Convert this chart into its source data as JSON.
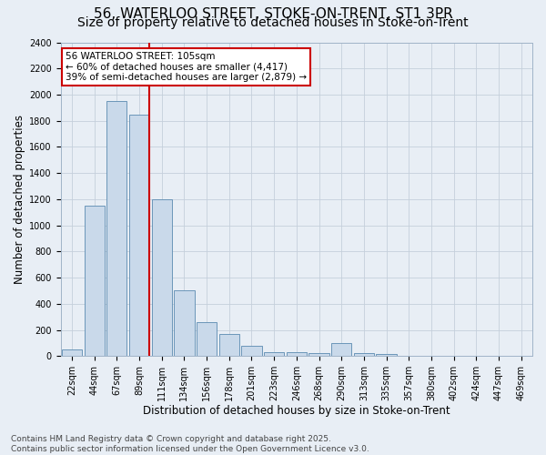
{
  "title_line1": "56, WATERLOO STREET, STOKE-ON-TRENT, ST1 3PR",
  "title_line2": "Size of property relative to detached houses in Stoke-on-Trent",
  "xlabel": "Distribution of detached houses by size in Stoke-on-Trent",
  "ylabel": "Number of detached properties",
  "categories": [
    "22sqm",
    "44sqm",
    "67sqm",
    "89sqm",
    "111sqm",
    "134sqm",
    "156sqm",
    "178sqm",
    "201sqm",
    "223sqm",
    "246sqm",
    "268sqm",
    "290sqm",
    "313sqm",
    "335sqm",
    "357sqm",
    "380sqm",
    "402sqm",
    "424sqm",
    "447sqm",
    "469sqm"
  ],
  "values": [
    50,
    1150,
    1950,
    1850,
    1200,
    500,
    260,
    170,
    80,
    30,
    30,
    20,
    100,
    20,
    15,
    5,
    5,
    3,
    2,
    2,
    1
  ],
  "bar_color": "#c9d9ea",
  "bar_edge_color": "#5a8ab0",
  "grid_color": "#c5cfdb",
  "background_color": "#e8eef5",
  "vline_color": "#cc0000",
  "annotation_text": "56 WATERLOO STREET: 105sqm\n← 60% of detached houses are smaller (4,417)\n39% of semi-detached houses are larger (2,879) →",
  "annotation_box_color": "white",
  "annotation_box_edge": "#cc0000",
  "footer_line1": "Contains HM Land Registry data © Crown copyright and database right 2025.",
  "footer_line2": "Contains public sector information licensed under the Open Government Licence v3.0.",
  "ylim": [
    0,
    2400
  ],
  "yticks": [
    0,
    200,
    400,
    600,
    800,
    1000,
    1200,
    1400,
    1600,
    1800,
    2000,
    2200,
    2400
  ],
  "title_fontsize": 11,
  "subtitle_fontsize": 10,
  "axis_label_fontsize": 8.5,
  "tick_fontsize": 7,
  "footer_fontsize": 6.5,
  "annotation_fontsize": 7.5
}
